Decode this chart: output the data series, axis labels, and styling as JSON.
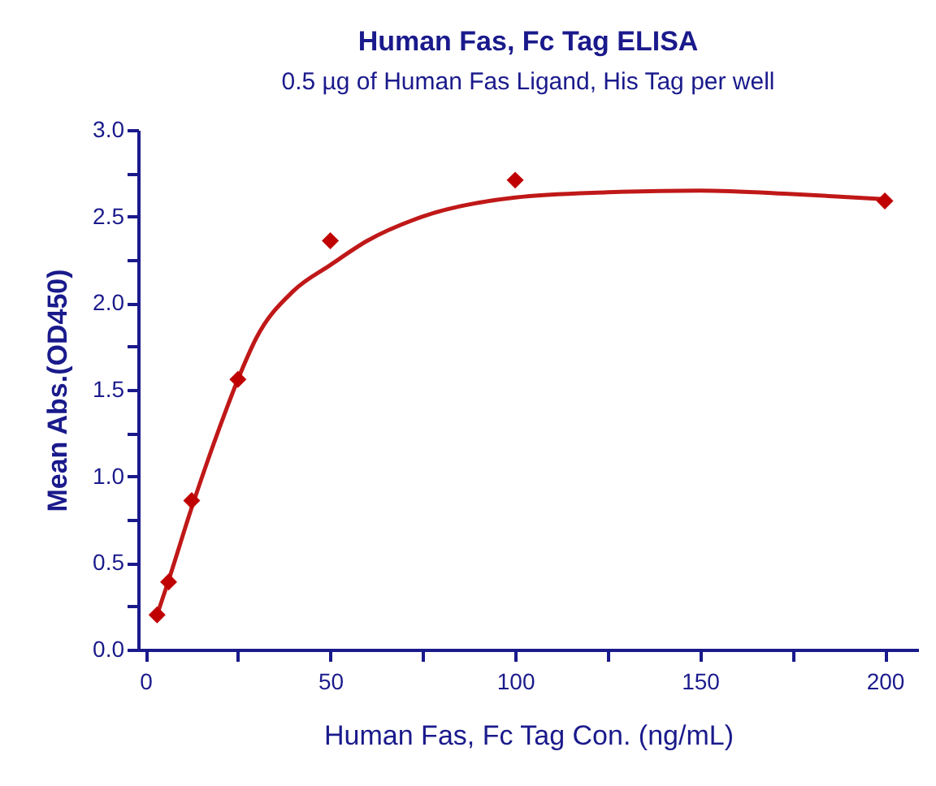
{
  "chart_data": {
    "type": "scatter",
    "title": "Human Fas, Fc Tag ELISA",
    "subtitle": "0.5 µg of Human Fas Ligand, His Tag per well",
    "xlabel": "Human Fas, Fc Tag Con. (ng/mL)",
    "ylabel": "Mean Abs.(OD450)",
    "xlim": [
      -2,
      209
    ],
    "ylim": [
      0,
      3
    ],
    "xticks": [
      0,
      {
        "value": 25,
        "label": null
      },
      50,
      {
        "value": 75,
        "label": null
      },
      100,
      {
        "value": 125,
        "label": null
      },
      150,
      {
        "value": 175,
        "label": null
      },
      200
    ],
    "yticks": [
      {
        "value": 0,
        "label": "0.0"
      },
      {
        "value": 0.25,
        "label": null
      },
      {
        "value": 0.5,
        "label": "0.5"
      },
      {
        "value": 0.75,
        "label": null
      },
      {
        "value": 1,
        "label": "1.0"
      },
      {
        "value": 1.25,
        "label": null
      },
      {
        "value": 1.5,
        "label": "1.5"
      },
      {
        "value": 1.75,
        "label": null
      },
      {
        "value": 2,
        "label": "2.0"
      },
      {
        "value": 2.25,
        "label": null
      },
      {
        "value": 2.5,
        "label": "2.5"
      },
      {
        "value": 2.75,
        "label": null
      },
      {
        "value": 3,
        "label": "3.0"
      }
    ],
    "series": [
      {
        "marker": "diamond",
        "color": "#c00000",
        "x": [
          3.125,
          6.25,
          12.5,
          25,
          50,
          100,
          200
        ],
        "values": [
          0.2,
          0.39,
          0.86,
          1.56,
          2.36,
          2.71,
          2.59
        ]
      },
      {
        "type": "line",
        "marker": "none",
        "line_style": "solid",
        "color": "#c01818",
        "x": [
          3.125,
          6.25,
          12.5,
          20,
          25,
          30,
          40,
          50,
          60,
          75,
          100,
          125,
          150,
          175,
          200
        ],
        "values": [
          0.2,
          0.4,
          0.82,
          1.28,
          1.56,
          1.8,
          2.07,
          2.22,
          2.36,
          2.5,
          2.61,
          2.64,
          2.65,
          2.63,
          2.6
        ]
      }
    ]
  }
}
